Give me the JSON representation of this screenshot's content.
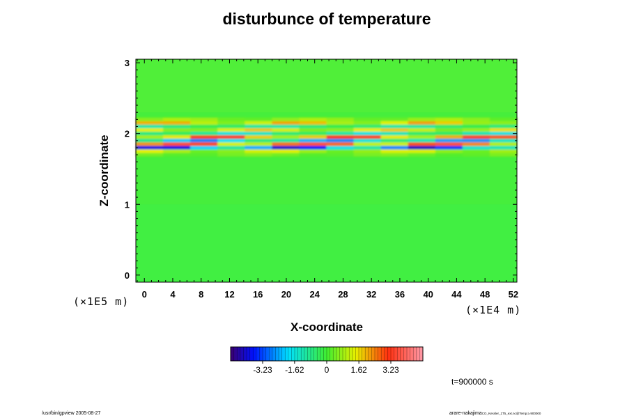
{
  "title": "disturbunce of temperature",
  "chart_data": {
    "type": "heatmap",
    "title": "disturbunce of temperature",
    "xlabel": "X-coordinate",
    "ylabel": "Z-coordinate",
    "x_multiplier": "(×1E4 m)",
    "y_multiplier": "(×1E5 m)",
    "xlim": [
      -1.2,
      52.5
    ],
    "ylim": [
      -0.1,
      3.05
    ],
    "x_ticks": [
      0,
      4,
      8,
      12,
      16,
      20,
      24,
      28,
      32,
      36,
      40,
      44,
      48,
      52
    ],
    "y_ticks": [
      0,
      1,
      2,
      3
    ],
    "colorbar": {
      "range": [
        -4.845,
        4.845
      ],
      "tick_values": [
        -3.23,
        -1.62,
        0,
        1.62,
        3.23
      ],
      "tick_labels": [
        "-3.23",
        "-1.62",
        "0",
        "1.62",
        "3.23"
      ]
    },
    "bands": [
      {
        "z": 2.2,
        "value": 0.8
      },
      {
        "z": 2.15,
        "value": 1.8
      },
      {
        "z": 2.1,
        "value": -1.0
      },
      {
        "z": 2.05,
        "value": 1.5
      },
      {
        "z": 2.0,
        "value": -1.4
      },
      {
        "z": 1.95,
        "value": 2.8
      },
      {
        "z": 1.9,
        "value": -2.3
      },
      {
        "z": 1.85,
        "value": 3.0
      },
      {
        "z": 1.8,
        "value": -3.5
      },
      {
        "z": 1.75,
        "value": 1.2
      },
      {
        "z": 1.7,
        "value": 0.5
      }
    ],
    "colors": {
      "background_field": "#46ee3c",
      "positive": "#ff2020",
      "negative": "#0010ff"
    }
  },
  "annotation_time": "t=900000 s",
  "footer_left": "/usr/bin/gpview 2005-08-27",
  "footer_right_main": "arare-nakajima",
  "footer_right_small": "CO_Kessler_1T5_ext.nc@Temp,t=900000"
}
